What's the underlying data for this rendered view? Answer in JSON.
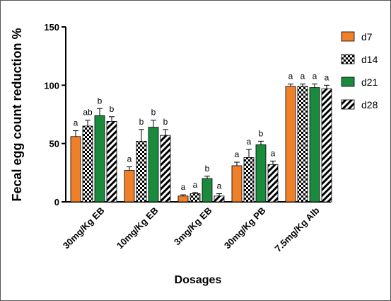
{
  "chart_data": {
    "type": "bar",
    "xlabel": "Dosages",
    "ylabel": "Fecal egg count reduction %",
    "ylim": [
      0,
      150
    ],
    "yticks": [
      0,
      50,
      100,
      150
    ],
    "grid": false,
    "legend_position": "right",
    "categories": [
      "30mg/Kg EB",
      "10mg/Kg EB",
      "3mg/Kg EB",
      "30mg/Kg PB",
      "7.5mg/Kg Alb"
    ],
    "series": [
      {
        "name": "d7",
        "style": "solid-orange",
        "color": "#F07F2A",
        "values": [
          56,
          27,
          5,
          31,
          99
        ],
        "errors": [
          5,
          3,
          1,
          3,
          2
        ],
        "letters": [
          "a",
          "a",
          "a",
          "a",
          "a"
        ]
      },
      {
        "name": "d14",
        "style": "checkerboard",
        "color": "#000000",
        "values": [
          65,
          52,
          7,
          38,
          99
        ],
        "errors": [
          5,
          10,
          1,
          7,
          2
        ],
        "letters": [
          "ab",
          "b",
          "a",
          "a",
          "a"
        ]
      },
      {
        "name": "d21",
        "style": "solid-green",
        "color": "#1A8A3C",
        "values": [
          74,
          64,
          20,
          49,
          98
        ],
        "errors": [
          6,
          6,
          2,
          3,
          3
        ],
        "letters": [
          "b",
          "b",
          "b",
          "b",
          "a"
        ]
      },
      {
        "name": "d28",
        "style": "diagonal-hatch",
        "color": "#000000",
        "values": [
          69,
          57,
          5,
          32,
          97
        ],
        "errors": [
          4,
          5,
          2,
          3,
          3
        ],
        "letters": [
          "b",
          "b",
          "a",
          "a",
          "a"
        ]
      }
    ]
  }
}
